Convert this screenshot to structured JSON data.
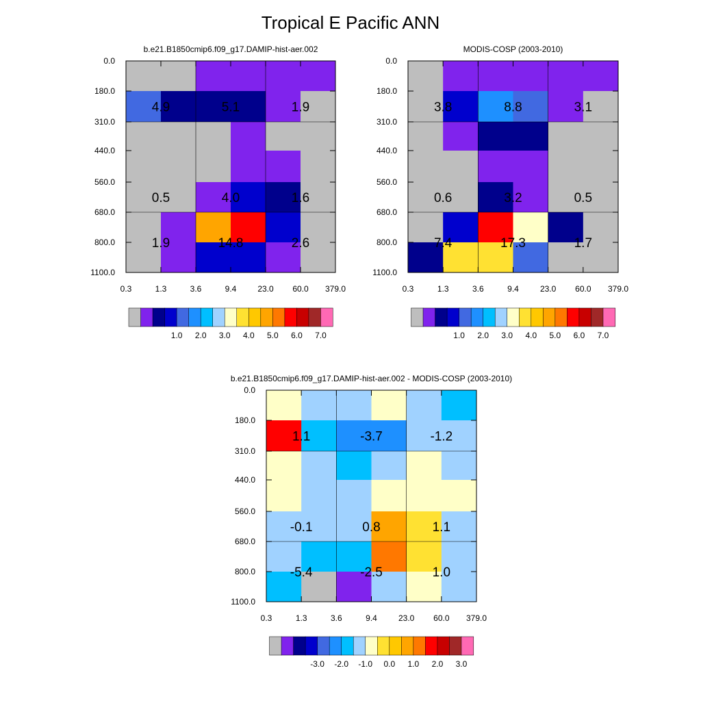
{
  "figure_title": "Tropical E Pacific ANN",
  "palette": {
    "abs": [
      "#bebebe",
      "#8023ed",
      "#00008c",
      "#0000cd",
      "#4169e1",
      "#1e90ff",
      "#00bfff",
      "#a0d2ff",
      "#ffffc8",
      "#ffe132",
      "#ffc800",
      "#ffa500",
      "#ff7800",
      "#ff0000",
      "#c80000",
      "#a02828",
      "#ff69b4"
    ],
    "diff": [
      "#bebebe",
      "#8023ed",
      "#00008c",
      "#0000cd",
      "#4169e1",
      "#1e90ff",
      "#00bfff",
      "#a0d2ff",
      "#ffffc8",
      "#ffe132",
      "#ffc800",
      "#ffa500",
      "#ff7800",
      "#ff0000",
      "#c80000",
      "#a02828",
      "#ff69b4"
    ]
  },
  "chart_data": [
    {
      "type": "heatmap",
      "title": "b.e21.B1850cmip6.f09_g17.DAMIP-hist-aer.002",
      "x_ticks": [
        "0.3",
        "1.3",
        "3.6",
        "9.4",
        "23.0",
        "60.0",
        "379.0"
      ],
      "y_ticks": [
        "0.0",
        "180.0",
        "310.0",
        "440.0",
        "560.0",
        "680.0",
        "800.0",
        "1100.0"
      ],
      "cells": [
        [
          0,
          0,
          1,
          1,
          1,
          1
        ],
        [
          4,
          2,
          2,
          2,
          1,
          0
        ],
        [
          0,
          0,
          0,
          1,
          0,
          0
        ],
        [
          0,
          0,
          0,
          1,
          1,
          0
        ],
        [
          0,
          0,
          1,
          3,
          2,
          0
        ],
        [
          0,
          1,
          11,
          13,
          3,
          0
        ],
        [
          0,
          1,
          3,
          3,
          1,
          0
        ]
      ],
      "box_values": [
        [
          "4.9",
          "5.1",
          "1.9"
        ],
        [
          "0.5",
          "4.0",
          "1.6"
        ],
        [
          "1.9",
          "14.8",
          "2.6"
        ]
      ],
      "colorbar_labels": [
        "1.0",
        "2.0",
        "3.0",
        "4.0",
        "5.0",
        "6.0",
        "7.0"
      ],
      "colorbar_palette": "abs"
    },
    {
      "type": "heatmap",
      "title": "MODIS-COSP (2003-2010)",
      "x_ticks": [
        "0.3",
        "1.3",
        "3.6",
        "9.4",
        "23.0",
        "60.0",
        "379.0"
      ],
      "y_ticks": [
        "0.0",
        "180.0",
        "310.0",
        "440.0",
        "560.0",
        "680.0",
        "800.0",
        "1100.0"
      ],
      "cells": [
        [
          0,
          1,
          1,
          1,
          1,
          1
        ],
        [
          0,
          3,
          5,
          4,
          1,
          0
        ],
        [
          0,
          1,
          2,
          2,
          0,
          0
        ],
        [
          0,
          0,
          1,
          1,
          0,
          0
        ],
        [
          0,
          0,
          2,
          1,
          0,
          0
        ],
        [
          0,
          3,
          13,
          8,
          2,
          0
        ],
        [
          2,
          9,
          9,
          4,
          0,
          0
        ]
      ],
      "box_values": [
        [
          "3.8",
          "8.8",
          "3.1"
        ],
        [
          "0.6",
          "3.2",
          "0.5"
        ],
        [
          "7.4",
          "17.3",
          "1.7"
        ]
      ],
      "colorbar_labels": [
        "1.0",
        "2.0",
        "3.0",
        "4.0",
        "5.0",
        "6.0",
        "7.0"
      ],
      "colorbar_palette": "abs"
    },
    {
      "type": "heatmap",
      "title": "b.e21.B1850cmip6.f09_g17.DAMIP-hist-aer.002 - MODIS-COSP (2003-2010)",
      "x_ticks": [
        "0.3",
        "1.3",
        "3.6",
        "9.4",
        "23.0",
        "60.0",
        "379.0"
      ],
      "y_ticks": [
        "0.0",
        "180.0",
        "310.0",
        "440.0",
        "560.0",
        "680.0",
        "800.0",
        "1100.0"
      ],
      "cells": [
        [
          8,
          7,
          7,
          8,
          7,
          6
        ],
        [
          13,
          6,
          5,
          5,
          7,
          7
        ],
        [
          8,
          7,
          6,
          7,
          8,
          7
        ],
        [
          8,
          7,
          7,
          8,
          8,
          8
        ],
        [
          7,
          7,
          7,
          11,
          9,
          7
        ],
        [
          7,
          6,
          6,
          12,
          9,
          7
        ],
        [
          6,
          0,
          1,
          7,
          8,
          7
        ]
      ],
      "box_values": [
        [
          "1.1",
          "-3.7",
          "-1.2"
        ],
        [
          "-0.1",
          "0.8",
          "1.1"
        ],
        [
          "-5.4",
          "-2.5",
          "1.0"
        ]
      ],
      "colorbar_labels": [
        "-3.0",
        "-2.0",
        "-1.0",
        "0.0",
        "1.0",
        "2.0",
        "3.0"
      ],
      "colorbar_palette": "diff"
    }
  ]
}
